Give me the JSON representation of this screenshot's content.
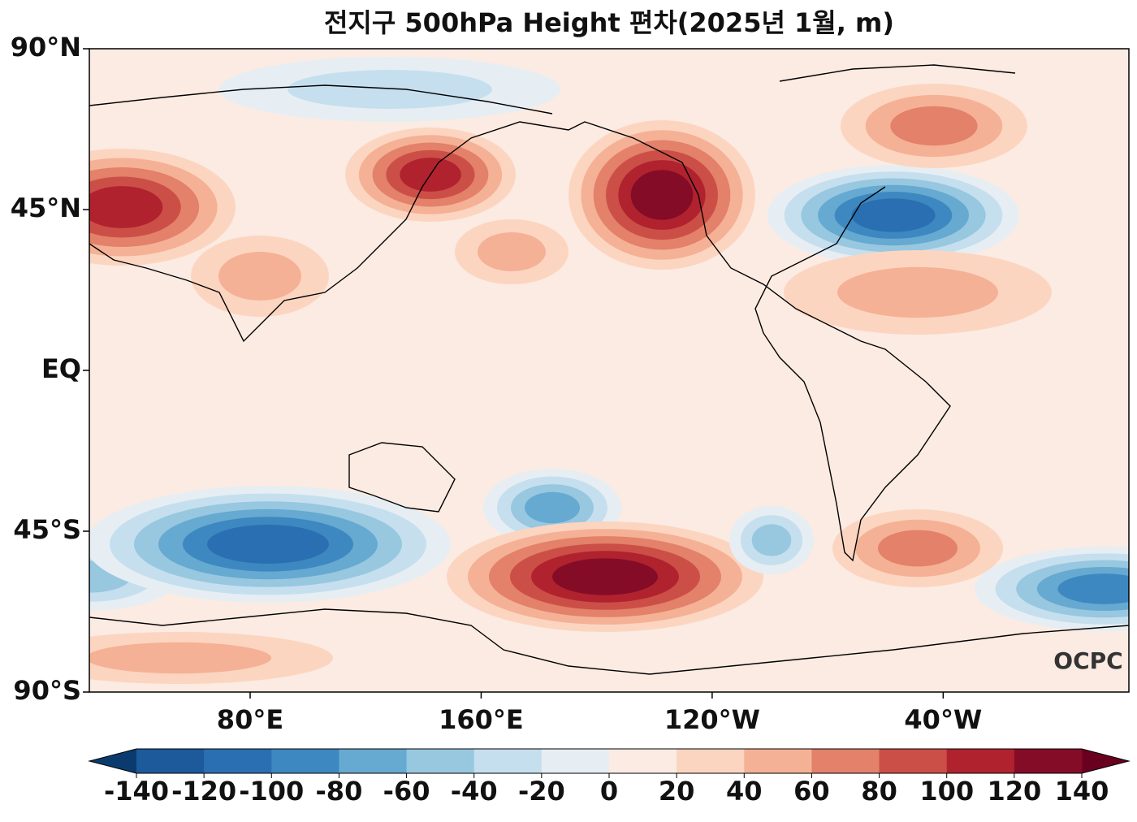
{
  "map": {
    "title": "전지구 500hPa Height 편차(2025년 1월, m)",
    "lat_ticks": [
      {
        "value": 90,
        "label": "90°N"
      },
      {
        "value": 45,
        "label": "45°N"
      },
      {
        "value": 0,
        "label": "EQ"
      },
      {
        "value": -45,
        "label": "45°S"
      },
      {
        "value": -90,
        "label": "90°S"
      }
    ],
    "lon_ticks": [
      {
        "value": 80,
        "label": "80°E"
      },
      {
        "value": 160,
        "label": "160°E"
      },
      {
        "value": -120,
        "label": "120°W"
      },
      {
        "value": -40,
        "label": "40°W"
      }
    ],
    "logo": "OCPC",
    "colorbar": {
      "levels": [
        -140,
        -120,
        -100,
        -80,
        -60,
        -40,
        -20,
        0,
        20,
        40,
        60,
        80,
        100,
        120,
        140
      ],
      "colors": [
        "#1c5a9c",
        "#2a6fb1",
        "#3d88c0",
        "#66a9d1",
        "#98c7e0",
        "#c5dfee",
        "#e6eef3",
        "#fbebe2",
        "#fcd5c1",
        "#f5b195",
        "#e3816a",
        "#cc4f47",
        "#b1222f",
        "#850c27"
      ],
      "under": "#0b3a6e",
      "over": "#6a0020"
    }
  }
}
